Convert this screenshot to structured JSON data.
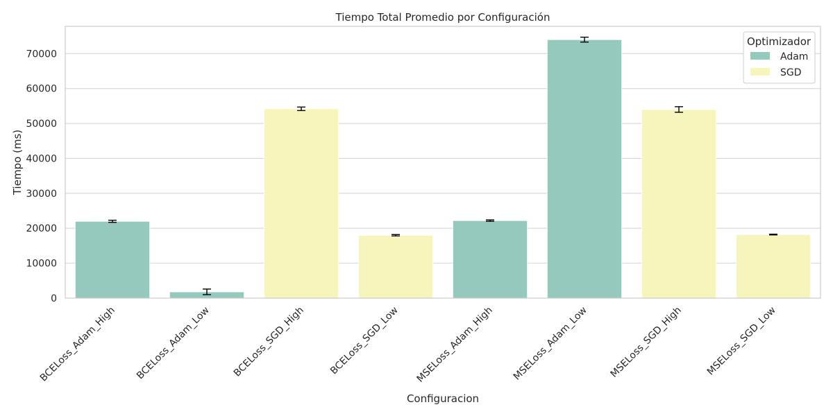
{
  "chart_data": {
    "type": "bar",
    "title": "Tiempo Total Promedio por Configuración",
    "xlabel": "Configuracion",
    "ylabel": "Tiempo (ms)",
    "ylim": [
      0,
      77800
    ],
    "yticks": [
      0,
      10000,
      20000,
      30000,
      40000,
      50000,
      60000,
      70000
    ],
    "grid": true,
    "categories": [
      "BCELoss_Adam_High",
      "BCELoss_Adam_Low",
      "BCELoss_SGD_High",
      "BCELoss_SGD_Low",
      "MSELoss_Adam_High",
      "MSELoss_Adam_Low",
      "MSELoss_SGD_High",
      "MSELoss_SGD_Low"
    ],
    "values": [
      22000,
      1800,
      54200,
      18000,
      22200,
      74000,
      54000,
      18200
    ],
    "errors": [
      300,
      800,
      500,
      200,
      200,
      700,
      800,
      100
    ],
    "groups": [
      "Adam",
      "Adam",
      "SGD",
      "SGD",
      "Adam",
      "Adam",
      "SGD",
      "SGD"
    ],
    "legend": {
      "title": "Optimizador",
      "position": "top-right",
      "entries": [
        {
          "name": "Adam",
          "color": "#95c9bd"
        },
        {
          "name": "SGD",
          "color": "#f6f6bc"
        }
      ]
    }
  }
}
